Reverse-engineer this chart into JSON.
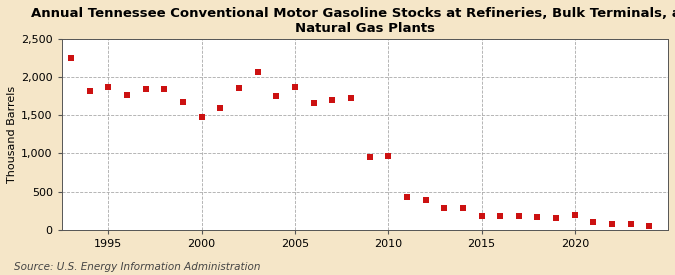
{
  "title": "Annual Tennessee Conventional Motor Gasoline Stocks at Refineries, Bulk Terminals, and\nNatural Gas Plants",
  "ylabel": "Thousand Barrels",
  "source": "Source: U.S. Energy Information Administration",
  "background_color": "#f5e6c8",
  "plot_bg_color": "#ffffff",
  "marker_color": "#cc1111",
  "years": [
    1993,
    1994,
    1995,
    1996,
    1997,
    1998,
    1999,
    2000,
    2001,
    2002,
    2003,
    2004,
    2005,
    2006,
    2007,
    2008,
    2009,
    2010,
    2011,
    2012,
    2013,
    2014,
    2015,
    2016,
    2017,
    2018,
    2019,
    2020,
    2021,
    2022,
    2023,
    2024
  ],
  "values": [
    2250,
    1820,
    1870,
    1770,
    1840,
    1850,
    1680,
    1480,
    1600,
    1860,
    2070,
    1750,
    1870,
    1660,
    1700,
    1730,
    950,
    960,
    430,
    390,
    290,
    290,
    175,
    185,
    175,
    165,
    155,
    200,
    100,
    80,
    70,
    50
  ],
  "ylim": [
    0,
    2500
  ],
  "yticks": [
    0,
    500,
    1000,
    1500,
    2000,
    2500
  ],
  "ytick_labels": [
    "0",
    "500",
    "1,000",
    "1,500",
    "2,000",
    "2,500"
  ],
  "xlim": [
    1992.5,
    2025
  ],
  "xticks": [
    1995,
    2000,
    2005,
    2010,
    2015,
    2020
  ],
  "title_fontsize": 9.5,
  "tick_fontsize": 8,
  "ylabel_fontsize": 8,
  "source_fontsize": 7.5
}
